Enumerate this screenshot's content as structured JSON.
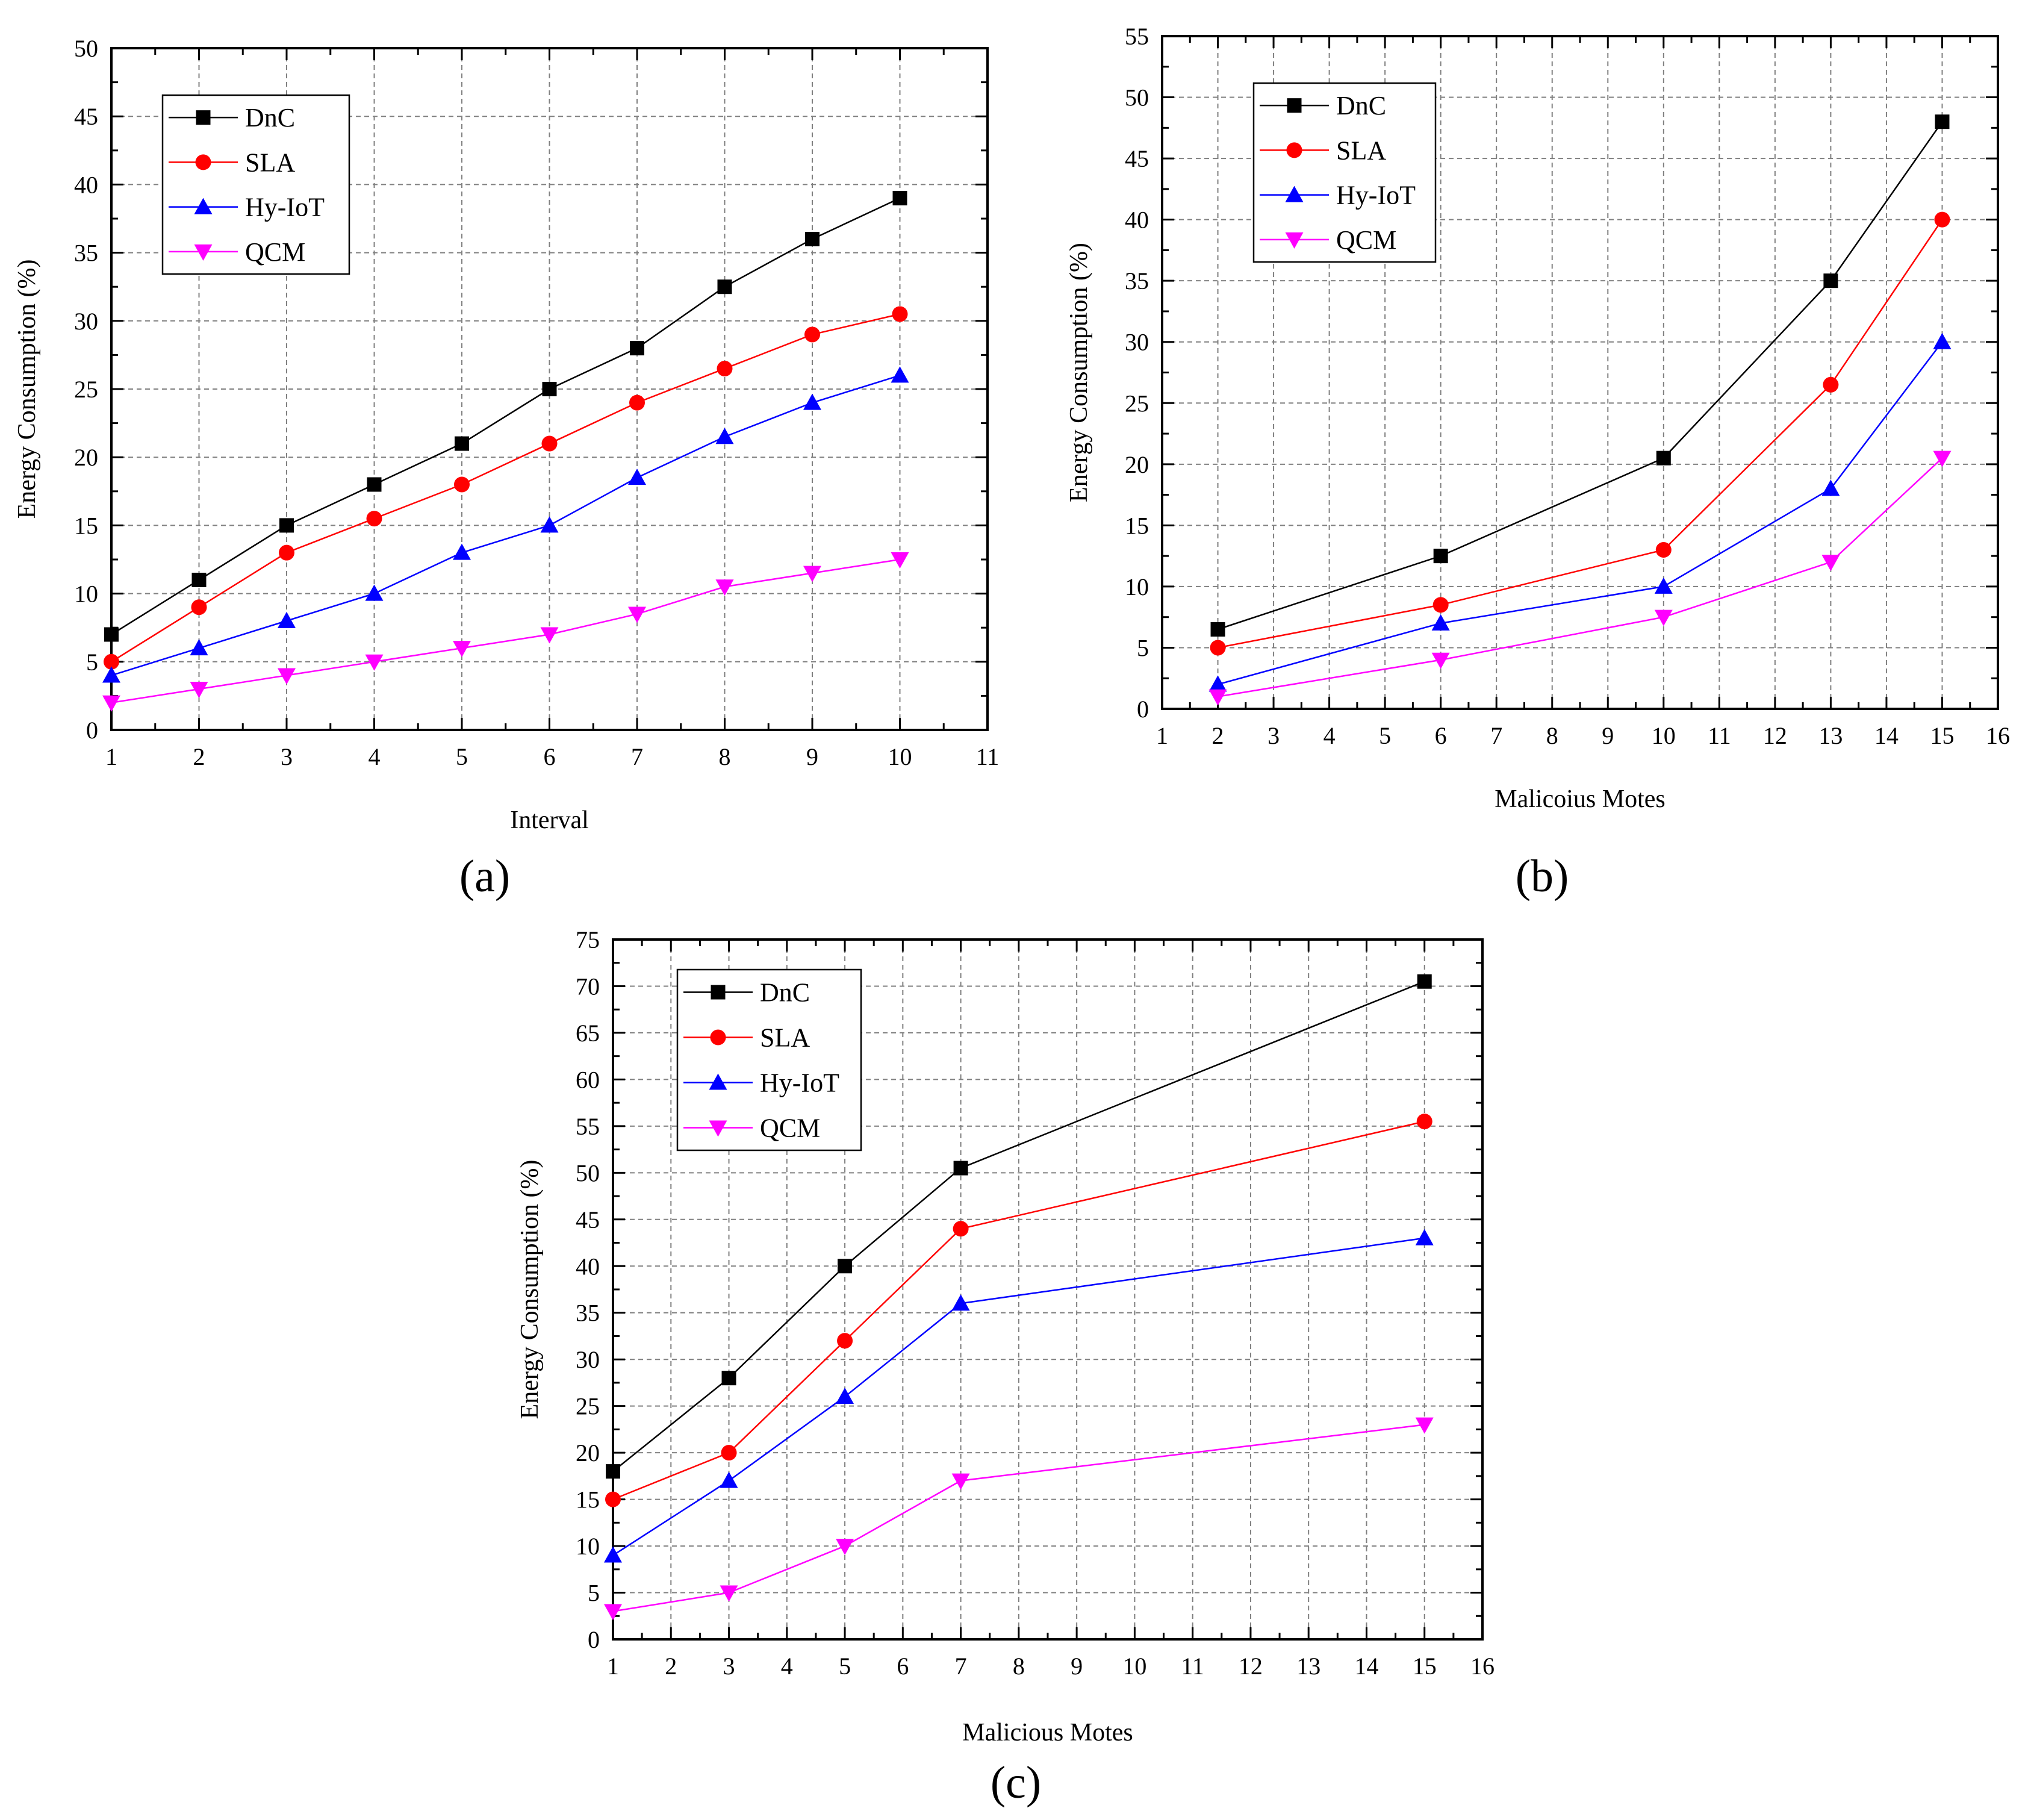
{
  "colors": {
    "DnC": "#000000",
    "SLA": "#ff0000",
    "Hy-IoT": "#0000ff",
    "QCM": "#ff00ff",
    "grid": "#808080",
    "axis": "#000000"
  },
  "markers": {
    "DnC": "square",
    "SLA": "circle",
    "Hy-IoT": "triangle-up",
    "QCM": "triangle-down"
  },
  "chart_data": [
    {
      "type": "line",
      "panel_label": "(a)",
      "xlabel": "Interval",
      "ylabel": "Energy Consumption (%)",
      "xlim": [
        1,
        11
      ],
      "ylim": [
        0,
        50
      ],
      "xticks": [
        1,
        2,
        3,
        4,
        5,
        6,
        7,
        8,
        9,
        10,
        11
      ],
      "yticks": [
        0,
        5,
        10,
        15,
        20,
        25,
        30,
        35,
        40,
        45,
        50
      ],
      "grid": true,
      "legend_position": "top-left",
      "x": [
        1,
        2,
        3,
        4,
        5,
        6,
        7,
        8,
        9,
        10
      ],
      "series": [
        {
          "name": "DnC",
          "values": [
            7,
            11,
            15,
            18,
            21,
            25,
            28,
            32.5,
            36,
            39
          ]
        },
        {
          "name": "SLA",
          "values": [
            5,
            9,
            13,
            15.5,
            18,
            21,
            24,
            26.5,
            29,
            30.5
          ]
        },
        {
          "name": "Hy-IoT",
          "values": [
            4,
            6,
            8,
            10,
            13,
            15,
            18.5,
            21.5,
            24,
            26
          ]
        },
        {
          "name": "QCM",
          "values": [
            2,
            3,
            4,
            5,
            6,
            7,
            8.5,
            10.5,
            11.5,
            12.5
          ]
        }
      ]
    },
    {
      "type": "line",
      "panel_label": "(b)",
      "xlabel": "Malicoius Motes",
      "ylabel": "Energy Consumption (%)",
      "xlim": [
        1,
        16
      ],
      "ylim": [
        0,
        55
      ],
      "xticks": [
        1,
        2,
        3,
        4,
        5,
        6,
        7,
        8,
        9,
        10,
        11,
        12,
        13,
        14,
        15,
        16
      ],
      "yticks": [
        0,
        5,
        10,
        15,
        20,
        25,
        30,
        35,
        40,
        45,
        50,
        55
      ],
      "grid": true,
      "legend_position": "top-left",
      "x": [
        2,
        6,
        10,
        13,
        15
      ],
      "series": [
        {
          "name": "DnC",
          "values": [
            6.5,
            12.5,
            20.5,
            35,
            48
          ]
        },
        {
          "name": "SLA",
          "values": [
            5,
            8.5,
            13,
            26.5,
            40
          ]
        },
        {
          "name": "Hy-IoT",
          "values": [
            2,
            7,
            10,
            18,
            30
          ]
        },
        {
          "name": "QCM",
          "values": [
            1,
            4,
            7.5,
            12,
            20.5
          ]
        }
      ]
    },
    {
      "type": "line",
      "panel_label": "(c)",
      "xlabel": "Malicious Motes",
      "ylabel": "Energy Consumption (%)",
      "xlim": [
        1,
        16
      ],
      "ylim": [
        0,
        75
      ],
      "xticks": [
        1,
        2,
        3,
        4,
        5,
        6,
        7,
        8,
        9,
        10,
        11,
        12,
        13,
        14,
        15,
        16
      ],
      "yticks": [
        0,
        5,
        10,
        15,
        20,
        25,
        30,
        35,
        40,
        45,
        50,
        55,
        60,
        65,
        70,
        75
      ],
      "grid": true,
      "legend_position": "top-left",
      "x": [
        1,
        3,
        5,
        7,
        15
      ],
      "series": [
        {
          "name": "DnC",
          "values": [
            18,
            28,
            40,
            50.5,
            70.5
          ]
        },
        {
          "name": "SLA",
          "values": [
            15,
            20,
            32,
            44,
            55.5
          ]
        },
        {
          "name": "Hy-IoT",
          "values": [
            9,
            17,
            26,
            36,
            43
          ]
        },
        {
          "name": "QCM",
          "values": [
            3,
            5,
            10,
            17,
            23
          ]
        }
      ]
    }
  ]
}
